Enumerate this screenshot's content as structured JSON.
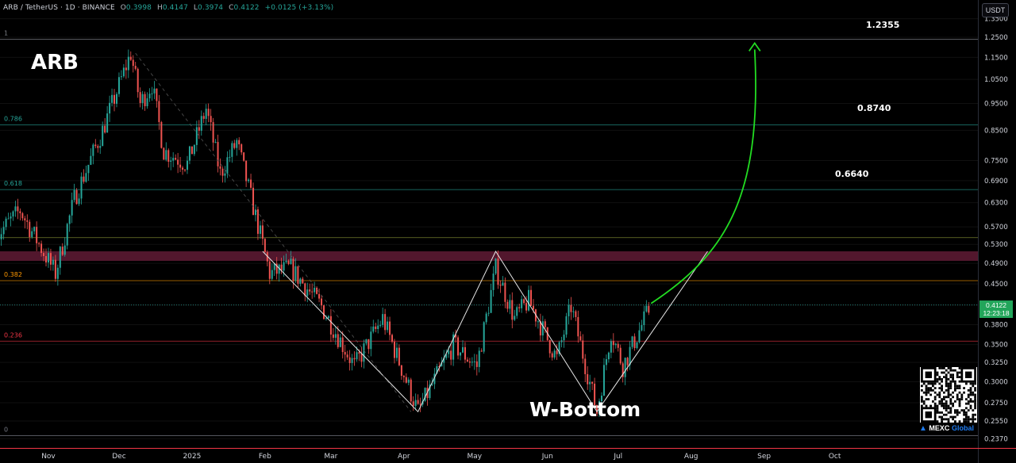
{
  "header": {
    "symbol": "ARB / TetherUS · 1D · BINANCE",
    "open_label": "O",
    "open": "0.3998",
    "high_label": "H",
    "high": "0.4147",
    "low_label": "L",
    "low": "0.3974",
    "close_label": "C",
    "close": "0.4122",
    "change": "+0.0125 (+3.13%)"
  },
  "currency": "USDT",
  "asset_title": "ARB",
  "pattern_label": "W-Bottom",
  "targets": [
    "0.6640",
    "0.8740",
    "1.2355"
  ],
  "current_price": {
    "price": "0.4122",
    "countdown": "12:23:18"
  },
  "brand": {
    "name": "MEXC",
    "suffix": "Global"
  },
  "colors": {
    "up": "#26a69a",
    "down": "#ef5350",
    "arrow": "#22dd22",
    "zone": "#6e1f3c",
    "price_tag": "#22a55a"
  },
  "chart_data": {
    "type": "candlestick",
    "title": "",
    "y_scale": "log",
    "y_ticks": [
      "1.3500",
      "1.2500",
      "1.1500",
      "1.0500",
      "0.9500",
      "0.8500",
      "0.7500",
      "0.6900",
      "0.6300",
      "0.5700",
      "0.5300",
      "0.4900",
      "0.4500",
      "0.4122",
      "0.3800",
      "0.3500",
      "0.3250",
      "0.3000",
      "0.2750",
      "0.2550",
      "0.2370"
    ],
    "x_ticks": [
      "Nov",
      "Dec",
      "2025",
      "Feb",
      "Mar",
      "Apr",
      "May",
      "Jun",
      "Jul",
      "Aug",
      "Sep",
      "Oct"
    ],
    "fib_levels": [
      {
        "label": "1",
        "price": 1.24,
        "color": "#7d8087"
      },
      {
        "label": "0.786",
        "price": 0.87,
        "color": "#26a69a"
      },
      {
        "label": "0.618",
        "price": 0.665,
        "color": "#26a69a"
      },
      {
        "label": "",
        "price": 0.545,
        "color": "#8f9a3a"
      },
      {
        "label": "0.382",
        "price": 0.456,
        "color": "#ff9800"
      },
      {
        "label": "0.236",
        "price": 0.355,
        "color": "#f23645"
      },
      {
        "label": "0",
        "price": 0.24,
        "color": "#787b86"
      }
    ],
    "resistance_zone": [
      0.495,
      0.515
    ],
    "current_price": 0.4122,
    "targets": [
      0.664,
      0.874,
      1.2355
    ],
    "w_bottom": [
      {
        "date": "2025-01-31",
        "price": 0.515
      },
      {
        "date": "2025-04-07",
        "price": 0.265
      },
      {
        "date": "2025-05-10",
        "price": 0.515
      },
      {
        "date": "2025-06-22",
        "price": 0.265
      },
      {
        "date": "2025-08-08",
        "price": 0.515
      }
    ],
    "projection": {
      "from": {
        "date": "2025-07-15",
        "price": 0.415
      },
      "to": {
        "date": "2025-08-28",
        "price": 1.22
      }
    },
    "candles_keypoints": [
      {
        "date": "2024-10-10",
        "price": 0.55
      },
      {
        "date": "2024-10-20",
        "price": 0.61
      },
      {
        "date": "2024-11-04",
        "price": 0.47
      },
      {
        "date": "2024-11-12",
        "price": 0.64
      },
      {
        "date": "2024-11-24",
        "price": 0.85
      },
      {
        "date": "2024-12-06",
        "price": 1.17
      },
      {
        "date": "2024-12-10",
        "price": 0.95
      },
      {
        "date": "2024-12-15",
        "price": 1.03
      },
      {
        "date": "2024-12-20",
        "price": 0.78
      },
      {
        "date": "2024-12-30",
        "price": 0.74
      },
      {
        "date": "2025-01-07",
        "price": 0.93
      },
      {
        "date": "2025-01-13",
        "price": 0.71
      },
      {
        "date": "2025-01-20",
        "price": 0.81
      },
      {
        "date": "2025-01-27",
        "price": 0.62
      },
      {
        "date": "2025-02-03",
        "price": 0.47
      },
      {
        "date": "2025-02-12",
        "price": 0.48
      },
      {
        "date": "2025-02-25",
        "price": 0.41
      },
      {
        "date": "2025-03-11",
        "price": 0.32
      },
      {
        "date": "2025-03-23",
        "price": 0.39
      },
      {
        "date": "2025-04-07",
        "price": 0.265
      },
      {
        "date": "2025-04-22",
        "price": 0.35
      },
      {
        "date": "2025-05-02",
        "price": 0.32
      },
      {
        "date": "2025-05-10",
        "price": 0.48
      },
      {
        "date": "2025-05-18",
        "price": 0.39
      },
      {
        "date": "2025-05-24",
        "price": 0.42
      },
      {
        "date": "2025-06-05",
        "price": 0.33
      },
      {
        "date": "2025-06-11",
        "price": 0.41
      },
      {
        "date": "2025-06-22",
        "price": 0.265
      },
      {
        "date": "2025-06-28",
        "price": 0.37
      },
      {
        "date": "2025-07-03",
        "price": 0.32
      },
      {
        "date": "2025-07-15",
        "price": 0.4122
      }
    ]
  }
}
